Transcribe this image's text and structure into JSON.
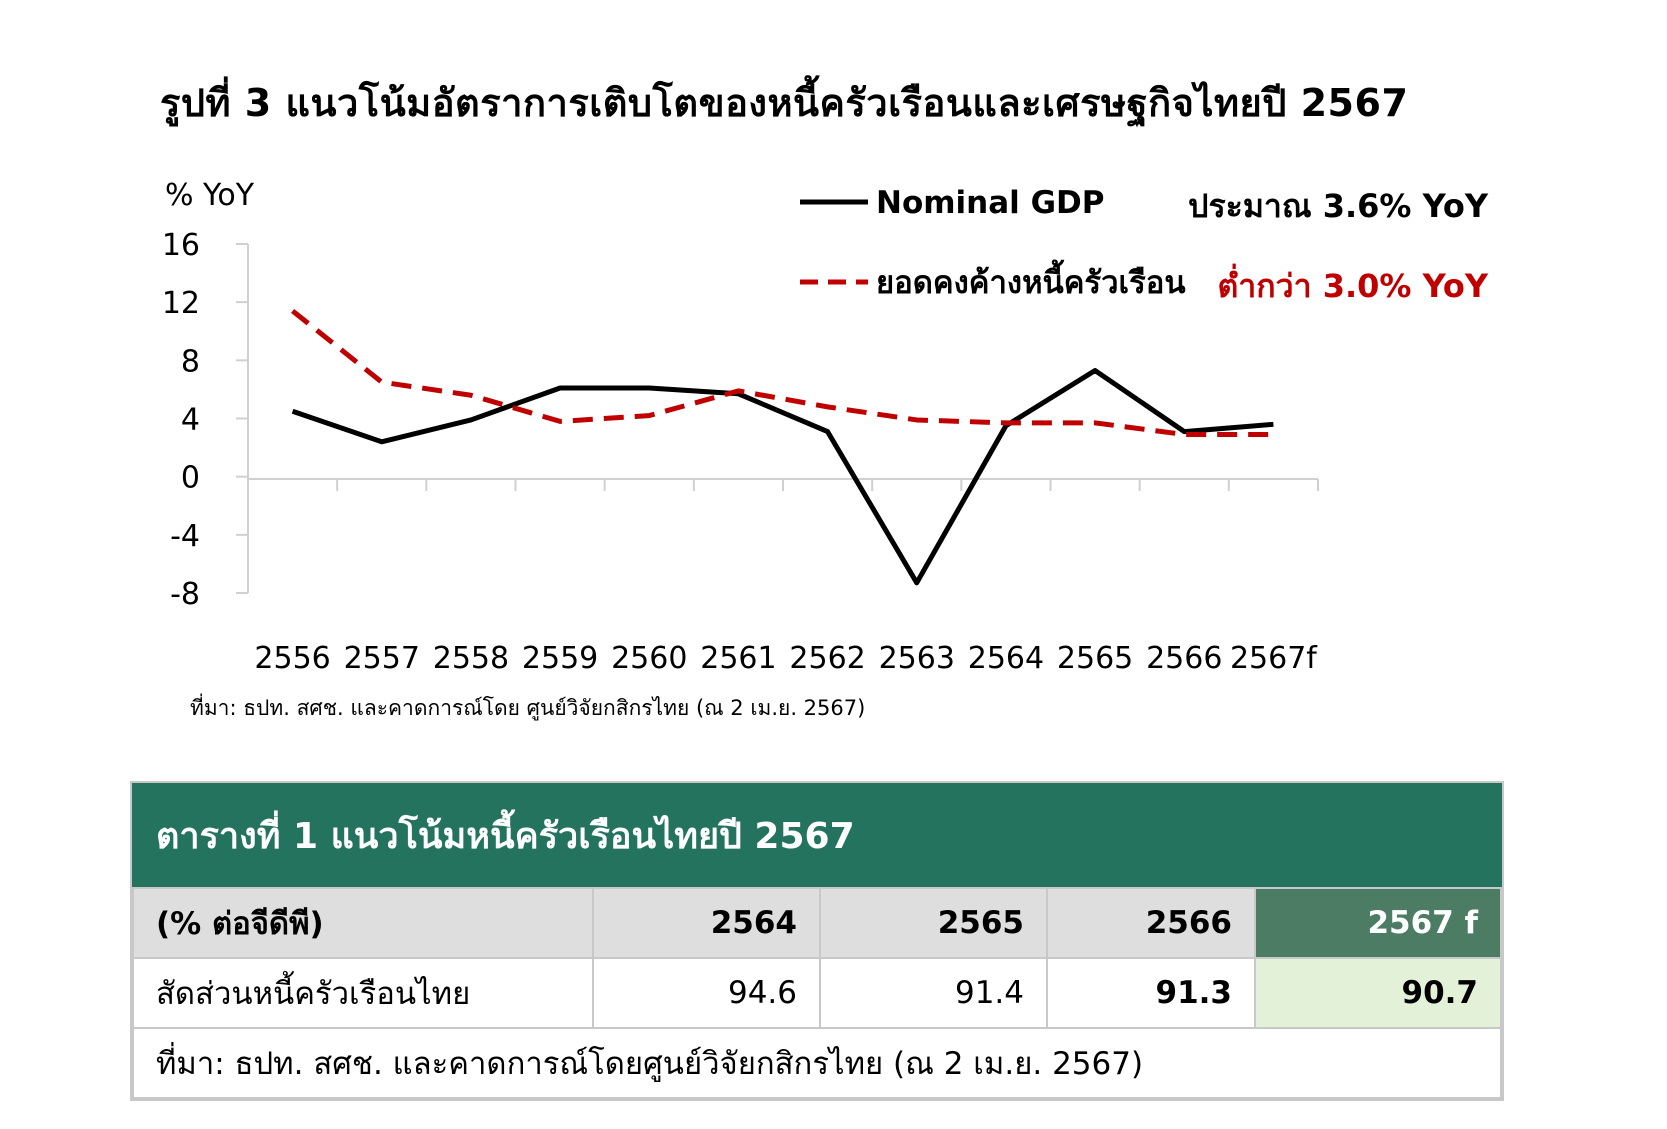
{
  "figure_title": "รูปที่ 3 แนวโน้มอัตราการเติบโตของหนี้ครัวเรือนและเศรษฐกิจไทยปี 2567",
  "chart_data": {
    "type": "line",
    "ylabel": "% YoY",
    "ylim": [
      -8,
      16
    ],
    "yticks": [
      16,
      12,
      8,
      4,
      0,
      -4,
      -8
    ],
    "categories": [
      "2556",
      "2557",
      "2558",
      "2559",
      "2560",
      "2561",
      "2562",
      "2563",
      "2564",
      "2565",
      "2566",
      "2567f"
    ],
    "series": [
      {
        "name": "Nominal GDP",
        "color": "#000000",
        "dash": "solid",
        "annotation": "ประมาณ 3.6% YoY",
        "annotation_color": "#000000",
        "values": [
          4.5,
          2.4,
          3.9,
          6.1,
          6.1,
          5.7,
          3.1,
          -7.3,
          3.5,
          7.3,
          3.1,
          3.6
        ]
      },
      {
        "name": "ยอดคงค้างหนี้ครัวเรือน",
        "color": "#c00000",
        "dash": "dashed",
        "annotation": "ต่ำกว่า 3.0% YoY",
        "annotation_color": "#c00000",
        "values": [
          11.4,
          6.5,
          5.6,
          3.8,
          4.2,
          5.9,
          4.8,
          3.9,
          3.7,
          3.7,
          2.9,
          2.9
        ]
      }
    ],
    "grid": false,
    "legend_position": "top-right"
  },
  "source_chart": "ที่มา: ธปท. สศช. และคาดการณ์โดย ศูนย์วิจัยกสิกรไทย (ณ 2 เม.ย. 2567)",
  "table": {
    "title": "ตารางที่ 1 แนวโน้มหนี้ครัวเรือนไทยปี 2567",
    "header": [
      "(% ต่อจีดีพี)",
      "2564",
      "2565",
      "2566",
      "2567 f"
    ],
    "row_label": "สัดส่วนหนี้ครัวเรือนไทย",
    "row_values": [
      "94.6",
      "91.4",
      "91.3",
      "90.7"
    ],
    "source": "ที่มา: ธปท. สศช. และคาดการณ์โดยศูนย์วิจัยกสิกรไทย (ณ 2 เม.ย. 2567)",
    "header_highlight_color": "#4d7c64",
    "cell_highlight_color": "#e2f1d8",
    "title_bar_color": "#23735f"
  }
}
